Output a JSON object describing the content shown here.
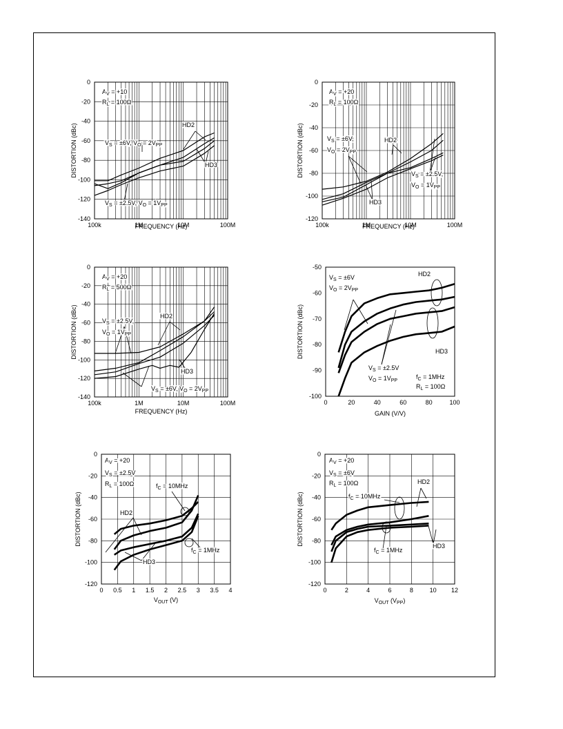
{
  "chart_data": [
    {
      "type": "line",
      "xscale": "log",
      "xlim": [
        100000,
        100000000
      ],
      "ylim": [
        -140,
        0
      ],
      "xticks": [
        "100k",
        "1M",
        "10M",
        "100M"
      ],
      "yticks": [
        "0",
        "-20",
        "-40",
        "-60",
        "-80",
        "-100",
        "-120",
        "-140"
      ],
      "xlabel": "FREQUENCY (Hz)",
      "ylabel": "DISTORTION (dBc)",
      "grid": true,
      "annotations": [
        "A_V = +10",
        "R_L = 100Ω",
        "HD2",
        "HD3",
        "V_S = ±6V, V_O = 2V_PP",
        "V_S = ±2.5V, V_O = 1V_PP"
      ],
      "series": [
        {
          "x": [
            100000,
            200000,
            400000,
            1000000,
            3000000,
            10000000,
            30000000,
            50000000
          ],
          "y": [
            -101,
            -101,
            -95,
            -88,
            -78,
            -70,
            -56,
            -52
          ]
        },
        {
          "x": [
            100000,
            200000,
            400000,
            1000000,
            3000000,
            10000000,
            30000000,
            50000000
          ],
          "y": [
            -104,
            -109,
            -103,
            -93,
            -85,
            -77,
            -63,
            -57
          ]
        },
        {
          "x": [
            100000,
            200000,
            400000,
            1000000,
            3000000,
            10000000,
            30000000,
            50000000
          ],
          "y": [
            -106,
            -104,
            -101,
            -93,
            -85,
            -81,
            -68,
            -60
          ]
        },
        {
          "x": [
            100000,
            200000,
            400000,
            1000000,
            3000000,
            10000000,
            30000000,
            50000000
          ],
          "y": [
            -116,
            -111,
            -105,
            -98,
            -91,
            -86,
            -73,
            -65
          ]
        }
      ]
    },
    {
      "type": "line",
      "xscale": "log",
      "xlim": [
        100000,
        100000000
      ],
      "ylim": [
        -120,
        0
      ],
      "xticks": [
        "100k",
        "1M",
        "10M",
        "100M"
      ],
      "yticks": [
        "0",
        "-20",
        "-40",
        "-60",
        "-80",
        "-100",
        "-120"
      ],
      "xlabel": "FREQUENCY (Hz)",
      "ylabel": "DISTORTION (dBc)",
      "grid": true,
      "annotations": [
        "A_V = +20",
        "R_L = 100Ω",
        "V_S = ±6V,",
        "V_O = 2V_PP",
        "HD2",
        "HD3",
        "V_S = ±2.5V,",
        "V_O = 1V_PP"
      ],
      "series": [
        {
          "x": [
            100000,
            300000,
            1000000,
            3000000,
            10000000,
            30000000,
            55000000
          ],
          "y": [
            -94,
            -92,
            -87,
            -79,
            -67,
            -54,
            -45
          ]
        },
        {
          "x": [
            100000,
            300000,
            1000000,
            3000000,
            10000000,
            30000000,
            55000000
          ],
          "y": [
            -103,
            -98,
            -88,
            -80,
            -75,
            -67,
            -62
          ]
        },
        {
          "x": [
            100000,
            300000,
            1000000,
            3000000,
            10000000,
            30000000,
            55000000
          ],
          "y": [
            -105,
            -101,
            -90,
            -80,
            -70,
            -60,
            -51
          ]
        },
        {
          "x": [
            100000,
            300000,
            1000000,
            3000000,
            10000000,
            30000000,
            55000000
          ],
          "y": [
            -108,
            -102,
            -94,
            -84,
            -76,
            -69,
            -64
          ]
        }
      ]
    },
    {
      "type": "line",
      "xscale": "log",
      "xlim": [
        100000,
        100000000
      ],
      "ylim": [
        -140,
        0
      ],
      "xticks": [
        "100k",
        "1M",
        "10M",
        "100M"
      ],
      "yticks": [
        "0",
        "-20",
        "-40",
        "-60",
        "-80",
        "-100",
        "-120",
        "-140"
      ],
      "xlabel": "FREQUENCY (Hz)",
      "ylabel": "DISTORTION (dBc)",
      "grid": true,
      "annotations": [
        "A_V = +20",
        "R_L = 500Ω",
        "V_S = ±2.5V,",
        "V_O = 1V_PP",
        "HD2",
        "HD3",
        "V_S = ±6V, V_O = 2V_PP"
      ],
      "series": [
        {
          "x": [
            100000,
            300000,
            1000000,
            3000000,
            10000000,
            30000000,
            50000000
          ],
          "y": [
            -93,
            -93,
            -92,
            -86,
            -72,
            -58,
            -48
          ]
        },
        {
          "x": [
            100000,
            300000,
            1000000,
            3000000,
            10000000,
            30000000,
            50000000
          ],
          "y": [
            -112,
            -109,
            -103,
            -90,
            -75,
            -58,
            -43
          ]
        },
        {
          "x": [
            100000,
            300000,
            1000000,
            3000000,
            10000000,
            30000000,
            50000000
          ],
          "y": [
            -116,
            -113,
            -104,
            -97,
            -82,
            -63,
            -52
          ]
        },
        {
          "x": [
            100000,
            300000,
            1000000,
            2000000,
            3000000,
            5000000,
            8000000,
            15000000,
            30000000,
            50000000
          ],
          "y": [
            -120,
            -118,
            -110,
            -106,
            -109,
            -106,
            -108,
            -92,
            -67,
            -50
          ]
        }
      ]
    },
    {
      "type": "line",
      "xlim": [
        0,
        100
      ],
      "ylim": [
        -100,
        -50
      ],
      "xticks": [
        "0",
        "20",
        "40",
        "60",
        "80",
        "100"
      ],
      "yticks": [
        "-50",
        "-60",
        "-70",
        "-80",
        "-90",
        "-100"
      ],
      "xlabel": "GAIN (V/V)",
      "ylabel": "DISTORTION (dBc)",
      "grid": false,
      "annotations": [
        "V_S = ±6V",
        "V_O = 2V_PP",
        "HD2",
        "HD3",
        "V_S = ±2.5V",
        "V_O = 1V_PP",
        "f_C = 1MHz",
        "R_L = 100Ω"
      ],
      "series": [
        {
          "x": [
            10,
            15,
            20,
            30,
            40,
            50,
            60,
            70,
            80,
            90,
            100
          ],
          "y": [
            -83,
            -75,
            -69,
            -64,
            -62,
            -60.5,
            -60,
            -59.5,
            -59,
            -58,
            -56.5
          ]
        },
        {
          "x": [
            10,
            15,
            20,
            30,
            40,
            50,
            60,
            70,
            80,
            90,
            100
          ],
          "y": [
            -89,
            -80,
            -75,
            -71,
            -68,
            -66,
            -64.5,
            -63.5,
            -63,
            -62.5,
            -61.5
          ]
        },
        {
          "x": [
            10,
            15,
            20,
            30,
            40,
            50,
            60,
            70,
            80,
            90,
            100
          ],
          "y": [
            -91,
            -84,
            -79,
            -75,
            -72,
            -70,
            -69,
            -68,
            -67.5,
            -67,
            -65.5
          ]
        },
        {
          "x": [
            10,
            15,
            20,
            30,
            40,
            50,
            60,
            70,
            80,
            90,
            100
          ],
          "y": [
            -100,
            -93,
            -87,
            -83,
            -80.5,
            -78.5,
            -77,
            -76,
            -75.5,
            -75,
            -73
          ]
        }
      ]
    },
    {
      "type": "line",
      "xlim": [
        0,
        4
      ],
      "ylim": [
        -120,
        0
      ],
      "xticks": [
        "0",
        "0.5",
        "1",
        "1.5",
        "2",
        "2.5",
        "3",
        "3.5",
        "4"
      ],
      "yticks": [
        "0",
        "-20",
        "-40",
        "-60",
        "-80",
        "-100",
        "-120"
      ],
      "xlabel": "V_OUT (V)",
      "ylabel": "DISTORTION (dBc)",
      "grid": true,
      "annotations": [
        "A_V = +20",
        "V_S = ±2.5V",
        "R_L = 100Ω",
        "f_C = 10MHz",
        "HD2",
        "HD3",
        "f_C = 1MHz"
      ],
      "series": [
        {
          "x": [
            0.4,
            0.6,
            1,
            1.5,
            2,
            2.5,
            2.8,
            3
          ],
          "y": [
            -74,
            -69,
            -66,
            -64,
            -61,
            -57,
            -50,
            -44
          ]
        },
        {
          "x": [
            0.4,
            0.6,
            1,
            1.5,
            2,
            2.5,
            2.8,
            3
          ],
          "y": [
            -88,
            -80,
            -75,
            -71,
            -68,
            -63,
            -52,
            -38
          ]
        },
        {
          "x": [
            0.4,
            0.6,
            1,
            1.5,
            2,
            2.5,
            2.8,
            3
          ],
          "y": [
            -93,
            -89,
            -86,
            -83,
            -80,
            -76,
            -68,
            -55
          ]
        },
        {
          "x": [
            0.4,
            0.6,
            1,
            1.5,
            2,
            2.5,
            2.8,
            3
          ],
          "y": [
            -107,
            -99,
            -93,
            -88,
            -84,
            -80,
            -72,
            -57
          ]
        }
      ]
    },
    {
      "type": "line",
      "xlim": [
        0,
        12
      ],
      "ylim": [
        -120,
        0
      ],
      "xticks": [
        "0",
        "2",
        "4",
        "6",
        "8",
        "10",
        "12"
      ],
      "yticks": [
        "0",
        "-20",
        "-40",
        "-60",
        "-80",
        "-100",
        "-120"
      ],
      "xlabel": "V_OUT (V_PP)",
      "ylabel": "DISTORTION (dBc)",
      "grid": true,
      "annotations": [
        "A_V = +20",
        "V_S = ±6V",
        "R_L = 100Ω",
        "f_C = 10MHz",
        "HD2",
        "HD3",
        "f_C = 1MHz"
      ],
      "series": [
        {
          "x": [
            0.6,
            1,
            2,
            3,
            4,
            6,
            8,
            9.6
          ],
          "y": [
            -70,
            -64,
            -56,
            -52,
            -49,
            -47,
            -45,
            -44
          ]
        },
        {
          "x": [
            0.6,
            1,
            2,
            3,
            4,
            6,
            8,
            9.6
          ],
          "y": [
            -84,
            -76,
            -70,
            -67,
            -65,
            -63,
            -60,
            -57
          ]
        },
        {
          "x": [
            0.6,
            1,
            2,
            3,
            4,
            6,
            8,
            9.6
          ],
          "y": [
            -90,
            -80,
            -72,
            -69,
            -67,
            -66,
            -65,
            -64
          ]
        },
        {
          "x": [
            0.6,
            1,
            2,
            3,
            4,
            6,
            8,
            9.6
          ],
          "y": [
            -100,
            -87,
            -76,
            -72,
            -70,
            -68,
            -67,
            -66
          ]
        }
      ]
    }
  ]
}
